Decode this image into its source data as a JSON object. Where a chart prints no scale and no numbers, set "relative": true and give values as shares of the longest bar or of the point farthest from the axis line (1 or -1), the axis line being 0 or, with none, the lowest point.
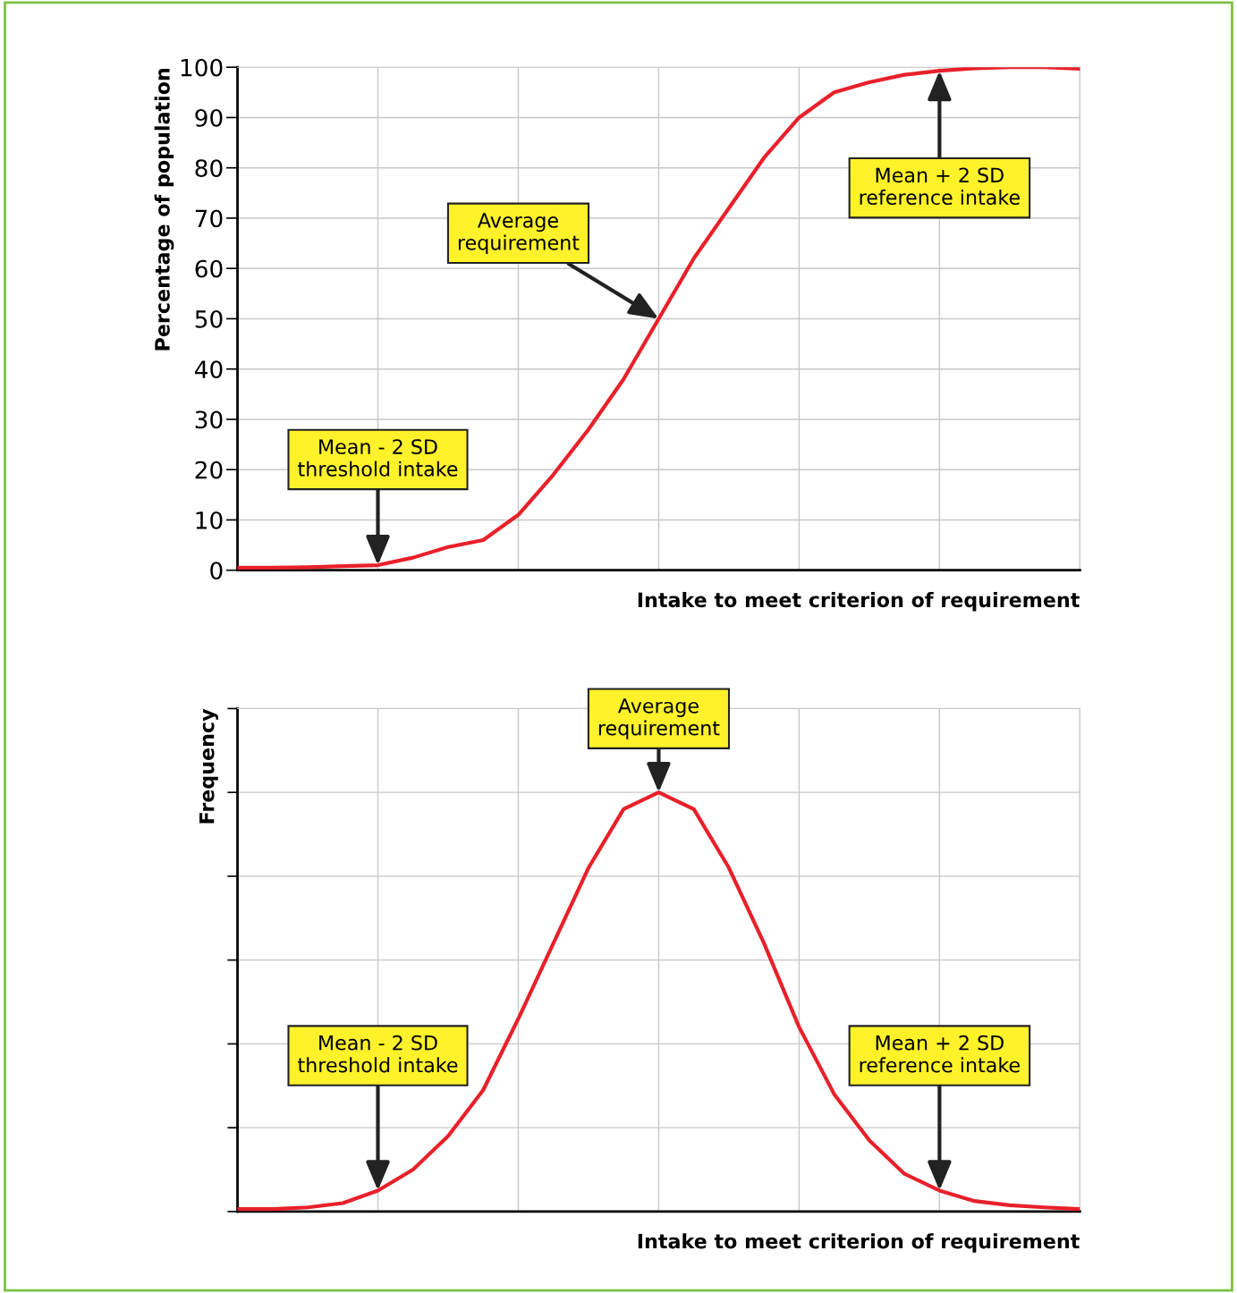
{
  "chart_data": [
    {
      "type": "line",
      "xlabel": "Intake to meet criterion of requirement",
      "ylabel": "Percentage of population",
      "categories": [
        null,
        null,
        null,
        null,
        null,
        null,
        null,
        null,
        null,
        null,
        null,
        null,
        null,
        null,
        null,
        null,
        null,
        null,
        null,
        null,
        null,
        null,
        null,
        null,
        null
      ],
      "series": [
        {
          "color": "#e8202a",
          "values": [
            0.5,
            0.5,
            0.6,
            0.8,
            1,
            2.5,
            4.6,
            6,
            11,
            19,
            28,
            38,
            50,
            62,
            72,
            82,
            90,
            95,
            97,
            98.5,
            99.3,
            99.8,
            100,
            100,
            99.7
          ]
        }
      ],
      "ylim": [
        0,
        100
      ],
      "yticks": [
        0,
        10,
        20,
        30,
        40,
        50,
        60,
        70,
        80,
        90,
        100
      ],
      "grid": true,
      "marker": "none",
      "line_style": "solid",
      "annotations": [
        "Mean - 2 SD\nthreshold intake",
        "Average\nrequirement",
        "Mean + 2 SD\nreference intake"
      ]
    },
    {
      "type": "line",
      "xlabel": "Intake to meet criterion of requirement",
      "ylabel": "Frequency",
      "relative": true,
      "categories": [
        null,
        null,
        null,
        null,
        null,
        null,
        null,
        null,
        null,
        null,
        null,
        null,
        null,
        null,
        null,
        null,
        null,
        null,
        null,
        null,
        null,
        null,
        null,
        null,
        null
      ],
      "series": [
        {
          "color": "#e8202a",
          "values": [
            0.006,
            0.006,
            0.01,
            0.02,
            0.05,
            0.1,
            0.18,
            0.29,
            0.46,
            0.64,
            0.82,
            0.96,
            1,
            0.96,
            0.82,
            0.64,
            0.44,
            0.28,
            0.17,
            0.09,
            0.05,
            0.025,
            0.015,
            0.01,
            0.006
          ]
        }
      ],
      "grid": true,
      "marker": "none",
      "line_style": "solid",
      "annotations": [
        "Mean - 2 SD\nthreshold intake",
        "Average\nrequirement",
        "Mean + 2 SD\nreference intake"
      ]
    }
  ]
}
